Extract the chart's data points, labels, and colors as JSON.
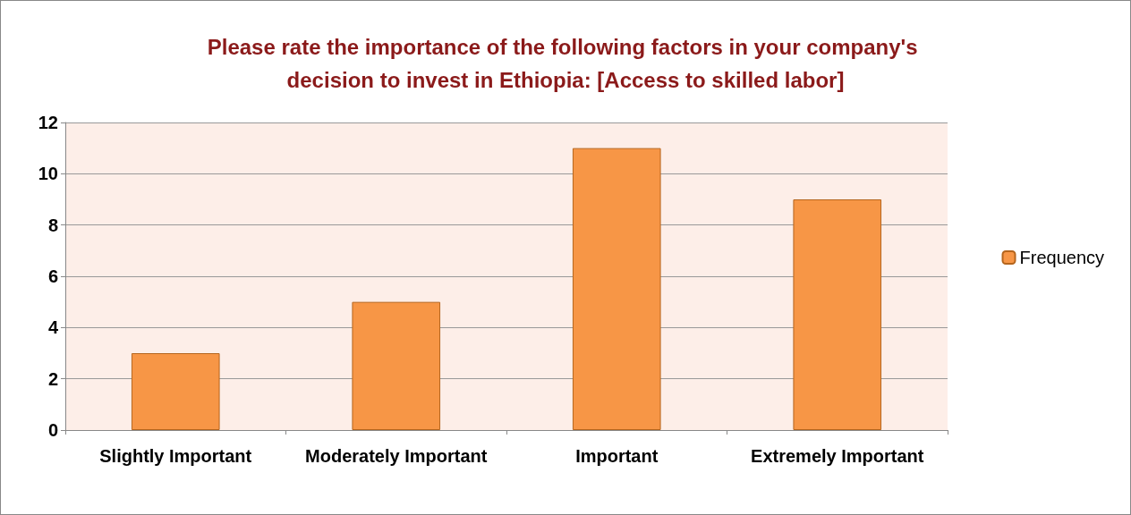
{
  "chart_data": {
    "type": "bar",
    "title": "Please rate the importance of the following factors in your company's decision to invest in Ethiopia: [Access to skilled labor]",
    "categories": [
      "Slightly Important",
      "Moderately Important",
      "Important",
      "Extremely Important"
    ],
    "series": [
      {
        "name": "Frequency",
        "color": "#f79646",
        "values": [
          3,
          5,
          11,
          9
        ]
      }
    ],
    "ylim": [
      0,
      12
    ],
    "yticks": [
      0,
      2,
      4,
      6,
      8,
      10,
      12
    ],
    "grid": "y",
    "legend": "right"
  }
}
